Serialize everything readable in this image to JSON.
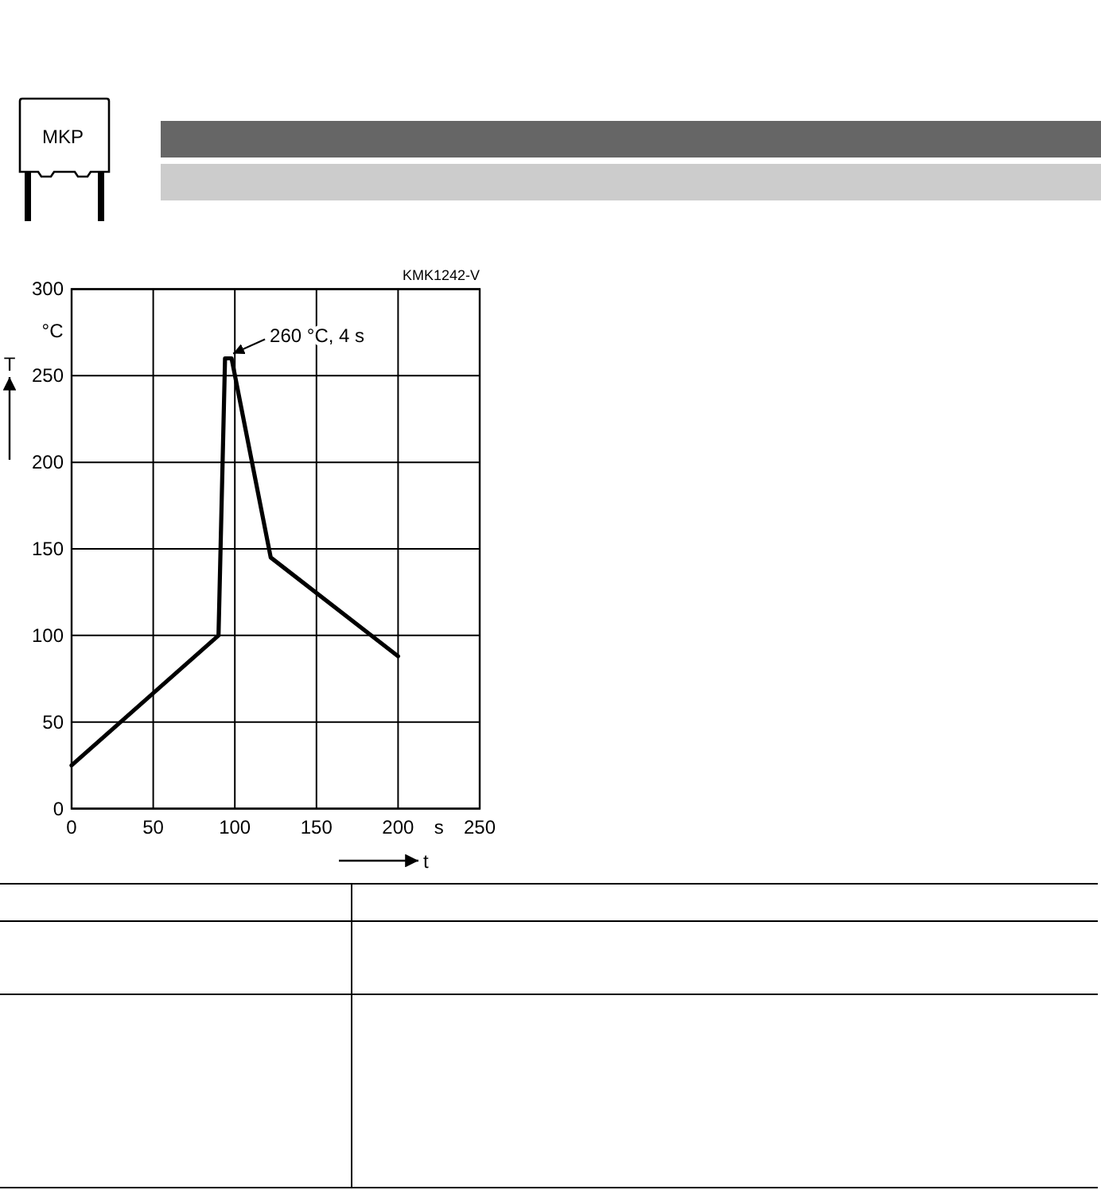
{
  "chart_data": {
    "type": "line",
    "x": [
      0,
      90,
      94,
      98,
      122,
      200
    ],
    "values": [
      25,
      100,
      260,
      260,
      145,
      88
    ],
    "color": "#000000",
    "line_style": "solid",
    "xlim": [
      0,
      250
    ],
    "ylim": [
      0,
      300
    ],
    "xticks": [
      0,
      50,
      100,
      150,
      200,
      250
    ],
    "yticks": [
      0,
      50,
      100,
      150,
      200,
      250,
      300
    ],
    "grid": true,
    "xlabel": "t",
    "ylabel": "T",
    "annotations": [
      {
        "text": "260 °C, 4 s",
        "x": 98,
        "y": 260
      },
      "°C",
      "s",
      "KMK1242-V",
      "MKP"
    ]
  }
}
